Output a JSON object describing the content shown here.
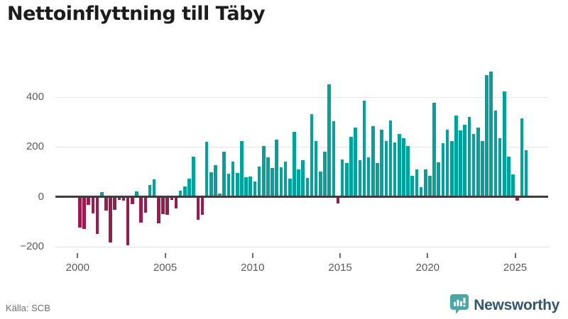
{
  "title": "Nettoinflyttning till Täby",
  "source": "Källa: SCB",
  "branding": {
    "logo_text": "Newsworthy",
    "logo_icon": "bar-chart-speech-bubble-icon"
  },
  "colors": {
    "positive_bar": "#00A29B",
    "negative_bar": "#9B1B4E",
    "zero_axis": "#3d3d3d",
    "gridline": "#e4e4e4",
    "axis_text": "#5c5c5c",
    "logo_teal": "#4CA7A4",
    "logo_text_color": "#32566b"
  },
  "chart_data": {
    "type": "bar",
    "title": "Nettoinflyttning till Täby",
    "xlabel": "",
    "ylabel": "",
    "grid": "horizontal",
    "legend": "none",
    "y_ticks": [
      400,
      200,
      0,
      -200
    ],
    "y_tick_labels": [
      "400",
      "200",
      "0",
      "−200"
    ],
    "ylim": [
      -230,
      520
    ],
    "x_tick_labels": [
      "2000",
      "2005",
      "2010",
      "2015",
      "2020",
      "2025"
    ],
    "period_start": "2000Q1",
    "period_end": "2025Q3",
    "categories": [
      "2000Q1",
      "2000Q2",
      "2000Q3",
      "2000Q4",
      "2001Q1",
      "2001Q2",
      "2001Q3",
      "2001Q4",
      "2002Q1",
      "2002Q2",
      "2002Q3",
      "2002Q4",
      "2003Q1",
      "2003Q2",
      "2003Q3",
      "2003Q4",
      "2004Q1",
      "2004Q2",
      "2004Q3",
      "2004Q4",
      "2005Q1",
      "2005Q2",
      "2005Q3",
      "2005Q4",
      "2006Q1",
      "2006Q2",
      "2006Q3",
      "2006Q4",
      "2007Q1",
      "2007Q2",
      "2007Q3",
      "2007Q4",
      "2008Q1",
      "2008Q2",
      "2008Q3",
      "2008Q4",
      "2009Q1",
      "2009Q2",
      "2009Q3",
      "2009Q4",
      "2010Q1",
      "2010Q2",
      "2010Q3",
      "2010Q4",
      "2011Q1",
      "2011Q2",
      "2011Q3",
      "2011Q4",
      "2012Q1",
      "2012Q2",
      "2012Q3",
      "2012Q4",
      "2013Q1",
      "2013Q2",
      "2013Q3",
      "2013Q4",
      "2014Q1",
      "2014Q2",
      "2014Q3",
      "2014Q4",
      "2015Q1",
      "2015Q2",
      "2015Q3",
      "2015Q4",
      "2016Q1",
      "2016Q2",
      "2016Q3",
      "2016Q4",
      "2017Q1",
      "2017Q2",
      "2017Q3",
      "2017Q4",
      "2018Q1",
      "2018Q2",
      "2018Q3",
      "2018Q4",
      "2019Q1",
      "2019Q2",
      "2019Q3",
      "2019Q4",
      "2020Q1",
      "2020Q2",
      "2020Q3",
      "2020Q4",
      "2021Q1",
      "2021Q2",
      "2021Q3",
      "2021Q4",
      "2022Q1",
      "2022Q2",
      "2022Q3",
      "2022Q4",
      "2023Q1",
      "2023Q2",
      "2023Q3",
      "2023Q4",
      "2024Q1",
      "2024Q2",
      "2024Q3",
      "2024Q4",
      "2025Q1",
      "2025Q2",
      "2025Q3"
    ],
    "values": [
      -123,
      -130,
      -33,
      -67,
      -149,
      20,
      -55,
      -183,
      -51,
      -11,
      -16,
      -194,
      -29,
      23,
      -104,
      -64,
      46,
      69,
      -105,
      -68,
      -73,
      -11,
      -47,
      24,
      41,
      73,
      162,
      -92,
      -71,
      220,
      98,
      126,
      12,
      182,
      93,
      141,
      96,
      223,
      79,
      81,
      63,
      120,
      203,
      159,
      116,
      228,
      119,
      141,
      72,
      260,
      109,
      147,
      77,
      331,
      222,
      100,
      180,
      450,
      302,
      -26,
      150,
      135,
      240,
      277,
      147,
      386,
      157,
      284,
      134,
      268,
      224,
      305,
      218,
      253,
      235,
      203,
      84,
      111,
      39,
      111,
      85,
      376,
      137,
      216,
      268,
      222,
      326,
      267,
      288,
      319,
      253,
      278,
      223,
      488,
      501,
      346,
      236,
      421,
      162,
      90,
      -16,
      315,
      186
    ]
  }
}
